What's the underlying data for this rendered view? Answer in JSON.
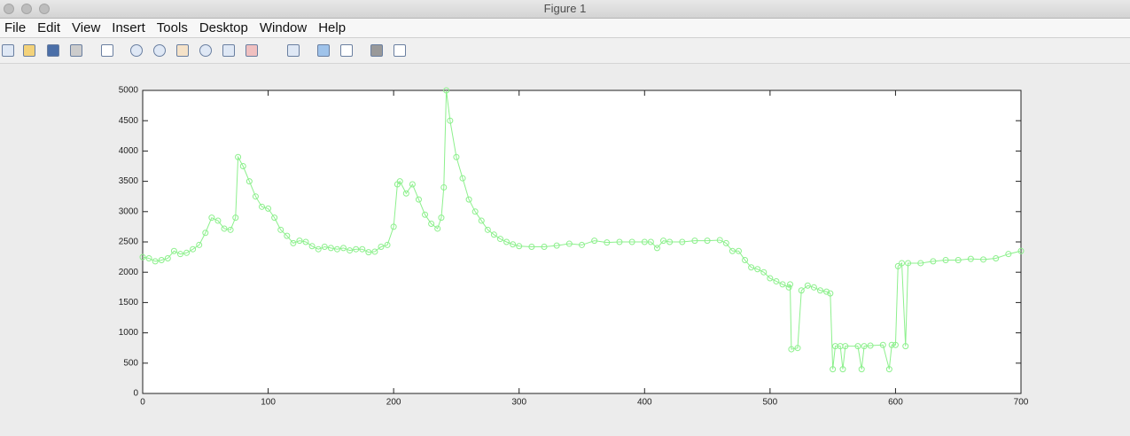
{
  "window": {
    "title": "Figure 1"
  },
  "menu": [
    "File",
    "Edit",
    "View",
    "Insert",
    "Tools",
    "Desktop",
    "Window",
    "Help"
  ],
  "chart_data": {
    "type": "line",
    "marker": "circle",
    "grid": false,
    "x": [
      0,
      5,
      10,
      15,
      20,
      25,
      30,
      35,
      40,
      45,
      50,
      55,
      60,
      65,
      70,
      74,
      76,
      80,
      85,
      90,
      95,
      100,
      105,
      110,
      115,
      120,
      125,
      130,
      135,
      140,
      145,
      150,
      155,
      160,
      165,
      170,
      175,
      180,
      185,
      190,
      195,
      200,
      203,
      205,
      210,
      215,
      220,
      225,
      230,
      235,
      238,
      240,
      242,
      245,
      250,
      255,
      260,
      265,
      270,
      275,
      280,
      285,
      290,
      295,
      300,
      310,
      320,
      330,
      340,
      350,
      360,
      370,
      380,
      390,
      400,
      405,
      410,
      415,
      420,
      430,
      440,
      450,
      460,
      465,
      470,
      475,
      480,
      485,
      490,
      495,
      500,
      505,
      510,
      515,
      516,
      517,
      522,
      525,
      530,
      535,
      540,
      545,
      548,
      550,
      552,
      556,
      558,
      560,
      570,
      573,
      575,
      580,
      590,
      595,
      597,
      600,
      602,
      605,
      608,
      610,
      620,
      630,
      640,
      650,
      660,
      670,
      680,
      690,
      700
    ],
    "series": [
      {
        "color": "#8df08d",
        "values": [
          2250,
          2230,
          2180,
          2200,
          2230,
          2350,
          2300,
          2320,
          2380,
          2450,
          2650,
          2900,
          2850,
          2720,
          2700,
          2900,
          3900,
          3750,
          3500,
          3250,
          3080,
          3050,
          2900,
          2700,
          2600,
          2480,
          2520,
          2500,
          2430,
          2380,
          2420,
          2400,
          2380,
          2400,
          2360,
          2380,
          2380,
          2330,
          2340,
          2420,
          2450,
          2750,
          3450,
          3500,
          3300,
          3450,
          3200,
          2950,
          2800,
          2720,
          2900,
          3400,
          5000,
          4500,
          3900,
          3550,
          3200,
          3000,
          2850,
          2700,
          2620,
          2550,
          2500,
          2460,
          2430,
          2420,
          2420,
          2440,
          2470,
          2450,
          2520,
          2490,
          2500,
          2500,
          2500,
          2500,
          2400,
          2520,
          2500,
          2500,
          2520,
          2520,
          2530,
          2480,
          2350,
          2350,
          2200,
          2080,
          2050,
          2000,
          1900,
          1850,
          1800,
          1750,
          1800,
          730,
          750,
          1700,
          1780,
          1750,
          1700,
          1680,
          1650,
          400,
          780,
          780,
          400,
          780,
          780,
          400,
          780,
          790,
          800,
          400,
          800,
          800,
          2100,
          2150,
          780,
          2150,
          2150,
          2180,
          2200,
          2200,
          2220,
          2210,
          2230,
          2300,
          2350
        ]
      }
    ],
    "xlim": [
      0,
      700
    ],
    "xticks": [
      0,
      100,
      200,
      300,
      400,
      500,
      600,
      700
    ],
    "ylim": [
      0,
      5000
    ],
    "yticks": [
      0,
      500,
      1000,
      1500,
      2000,
      2500,
      3000,
      3500,
      4000,
      4500,
      5000
    ]
  }
}
